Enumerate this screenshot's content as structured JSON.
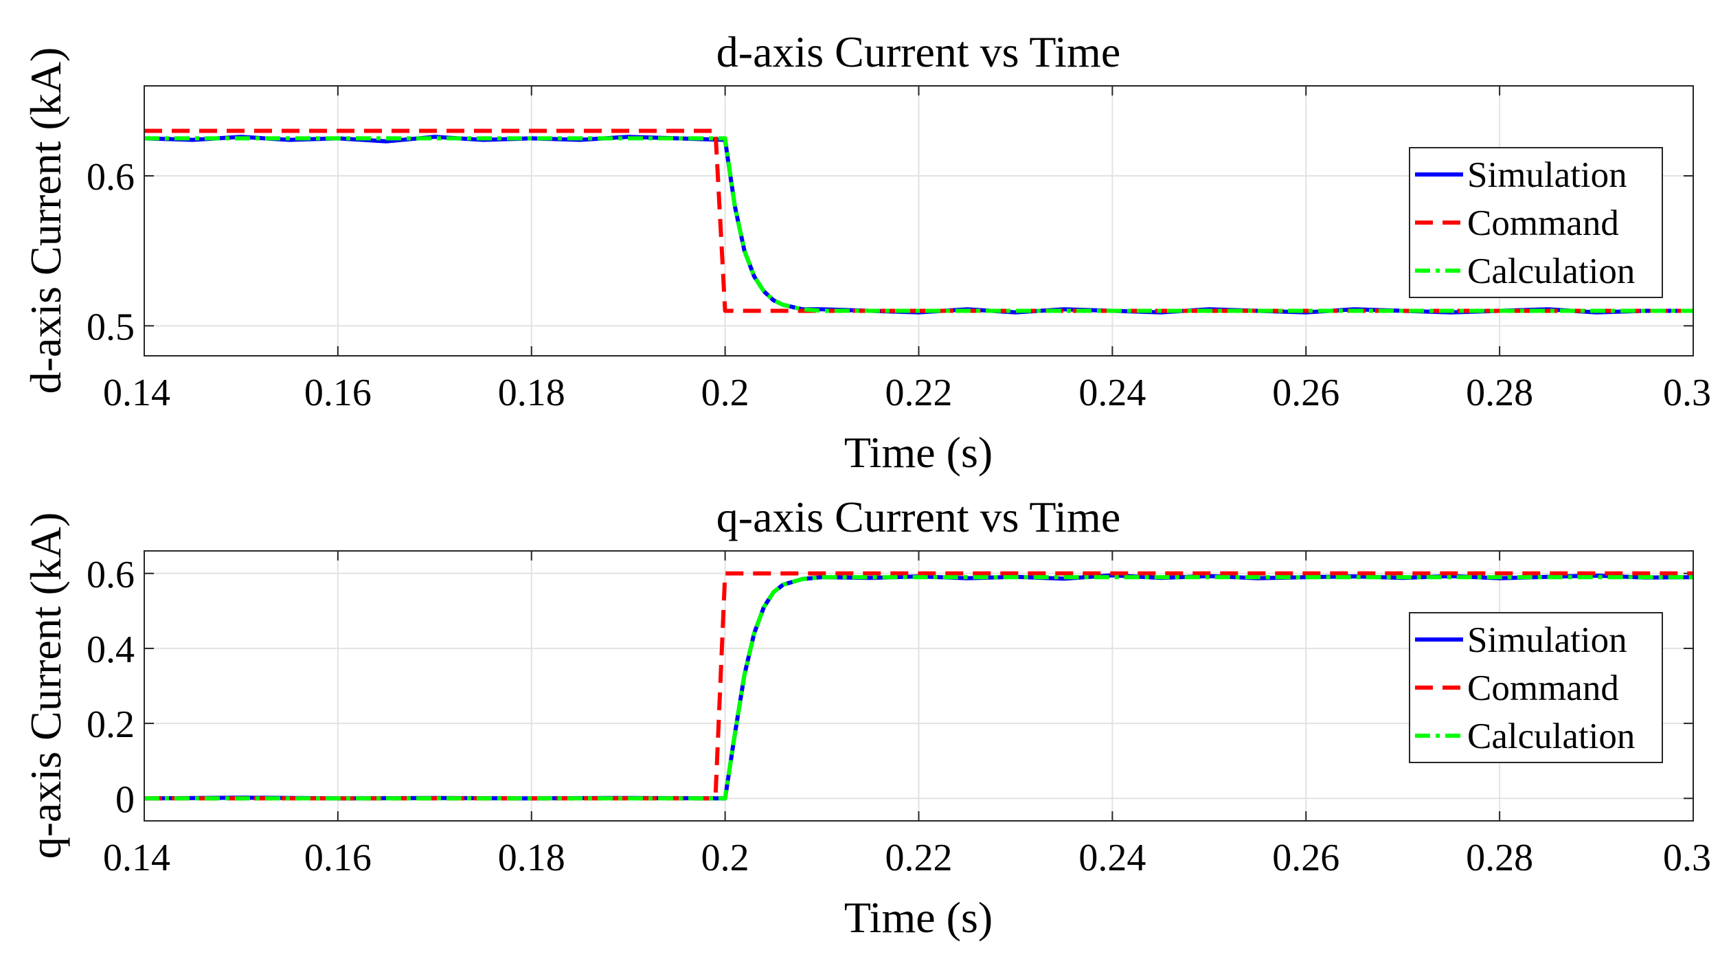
{
  "chart_data": [
    {
      "type": "line",
      "title": "d-axis Current vs Time",
      "xlabel": "Time (s)",
      "ylabel": "d-axis Current (kA)",
      "xlim": [
        0.14,
        0.3
      ],
      "ylim": [
        0.48,
        0.66
      ],
      "xticks": [
        0.14,
        0.16,
        0.18,
        0.2,
        0.22,
        0.24,
        0.26,
        0.28,
        0.3
      ],
      "xtick_labels": [
        "0.14",
        "0.16",
        "0.18",
        "0.2",
        "0.22",
        "0.24",
        "0.26",
        "0.28",
        "0.3"
      ],
      "yticks": [
        0.5,
        0.6
      ],
      "ytick_labels": [
        "0.5",
        "0.6"
      ],
      "grid": true,
      "legend_position": "right",
      "legend": [
        "Simulation",
        "Command",
        "Calculation"
      ],
      "series": [
        {
          "name": "Simulation",
          "color": "#0000ff",
          "style": "solid",
          "x": [
            0.14,
            0.145,
            0.15,
            0.155,
            0.16,
            0.165,
            0.17,
            0.175,
            0.18,
            0.185,
            0.19,
            0.195,
            0.2,
            0.201,
            0.202,
            0.203,
            0.204,
            0.205,
            0.206,
            0.208,
            0.21,
            0.215,
            0.22,
            0.225,
            0.23,
            0.235,
            0.24,
            0.245,
            0.25,
            0.255,
            0.26,
            0.265,
            0.27,
            0.275,
            0.28,
            0.285,
            0.29,
            0.295,
            0.3
          ],
          "y": [
            0.625,
            0.624,
            0.626,
            0.624,
            0.625,
            0.623,
            0.626,
            0.624,
            0.625,
            0.624,
            0.626,
            0.625,
            0.624,
            0.58,
            0.55,
            0.533,
            0.523,
            0.517,
            0.514,
            0.511,
            0.511,
            0.51,
            0.509,
            0.511,
            0.509,
            0.511,
            0.51,
            0.509,
            0.511,
            0.51,
            0.509,
            0.511,
            0.51,
            0.509,
            0.51,
            0.511,
            0.509,
            0.51,
            0.51
          ]
        },
        {
          "name": "Command",
          "color": "#ff0000",
          "style": "dashed",
          "x": [
            0.14,
            0.199,
            0.2,
            0.3
          ],
          "y": [
            0.63,
            0.63,
            0.51,
            0.51
          ]
        },
        {
          "name": "Calculation",
          "color": "#00ff00",
          "style": "dashdot",
          "x": [
            0.14,
            0.2,
            0.201,
            0.202,
            0.203,
            0.204,
            0.205,
            0.206,
            0.208,
            0.21,
            0.22,
            0.3
          ],
          "y": [
            0.625,
            0.625,
            0.58,
            0.55,
            0.533,
            0.523,
            0.517,
            0.514,
            0.511,
            0.51,
            0.51,
            0.51
          ]
        }
      ]
    },
    {
      "type": "line",
      "title": "q-axis Current vs Time",
      "xlabel": "Time (s)",
      "ylabel": "q-axis Current (kA)",
      "xlim": [
        0.14,
        0.3
      ],
      "ylim": [
        -0.06,
        0.66
      ],
      "xticks": [
        0.14,
        0.16,
        0.18,
        0.2,
        0.22,
        0.24,
        0.26,
        0.28,
        0.3
      ],
      "xtick_labels": [
        "0.14",
        "0.16",
        "0.18",
        "0.2",
        "0.22",
        "0.24",
        "0.26",
        "0.28",
        "0.3"
      ],
      "yticks": [
        0,
        0.2,
        0.4,
        0.6
      ],
      "ytick_labels": [
        "0",
        "0.2",
        "0.4",
        "0.6"
      ],
      "grid": true,
      "legend_position": "right",
      "legend": [
        "Simulation",
        "Command",
        "Calculation"
      ],
      "series": [
        {
          "name": "Simulation",
          "color": "#0000ff",
          "style": "solid",
          "x": [
            0.14,
            0.15,
            0.16,
            0.17,
            0.18,
            0.19,
            0.2,
            0.201,
            0.202,
            0.203,
            0.204,
            0.205,
            0.206,
            0.208,
            0.21,
            0.215,
            0.22,
            0.225,
            0.23,
            0.235,
            0.24,
            0.245,
            0.25,
            0.255,
            0.26,
            0.265,
            0.27,
            0.275,
            0.28,
            0.285,
            0.29,
            0.295,
            0.3
          ],
          "y": [
            0,
            0.002,
            0,
            0.001,
            0,
            0.001,
            0,
            0.17,
            0.33,
            0.44,
            0.51,
            0.55,
            0.57,
            0.585,
            0.59,
            0.588,
            0.592,
            0.587,
            0.591,
            0.586,
            0.595,
            0.588,
            0.593,
            0.587,
            0.59,
            0.592,
            0.588,
            0.593,
            0.587,
            0.591,
            0.594,
            0.589,
            0.59
          ]
        },
        {
          "name": "Command",
          "color": "#ff0000",
          "style": "dashed",
          "x": [
            0.14,
            0.199,
            0.2,
            0.3
          ],
          "y": [
            0,
            0,
            0.6,
            0.6
          ]
        },
        {
          "name": "Calculation",
          "color": "#00ff00",
          "style": "dashdot",
          "x": [
            0.14,
            0.2,
            0.201,
            0.202,
            0.203,
            0.204,
            0.205,
            0.206,
            0.208,
            0.21,
            0.22,
            0.3
          ],
          "y": [
            0,
            0,
            0.17,
            0.33,
            0.44,
            0.51,
            0.55,
            0.57,
            0.585,
            0.59,
            0.59,
            0.59
          ]
        }
      ]
    }
  ]
}
